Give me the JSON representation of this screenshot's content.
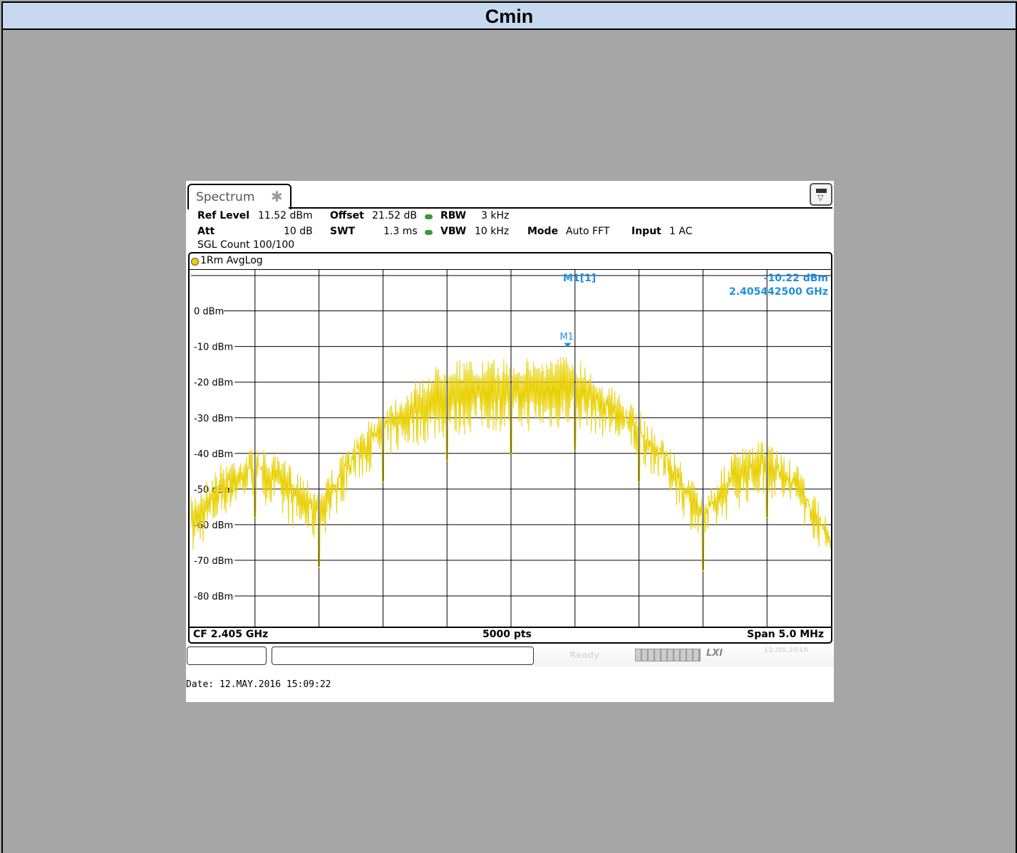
{
  "title": "Cmin",
  "analyzer": {
    "tab_label": "Spectrum",
    "settings": {
      "ref_level_label": "Ref Level",
      "ref_level_value": "11.52 dBm",
      "offset_label": "Offset",
      "offset_value": "21.52 dB",
      "rbw_label": "RBW",
      "rbw_value": "3 kHz",
      "att_label": "Att",
      "att_value": "10 dB",
      "swt_label": "SWT",
      "swt_value": "1.3 ms",
      "vbw_label": "VBW",
      "vbw_value": "10 kHz",
      "mode_label": "Mode",
      "mode_value": "Auto FFT",
      "input_label": "Input",
      "input_value": "1 AC",
      "sgl_count": "SGL Count 100/100"
    },
    "trace_label": "1Rm AvgLog",
    "marker": {
      "name": "M1[1]",
      "label": "M1",
      "level": "-10.22 dBm",
      "freq": "2.405442500 GHz"
    },
    "footer": {
      "cf": "CF 2.405 GHz",
      "pts": "5000 pts",
      "span": "Span 5.0 MHz"
    },
    "status": {
      "ready": "Ready",
      "date": "12.05.2016"
    },
    "datestamp": "Date: 12.MAY.2016  15:09:22"
  },
  "chart_data": {
    "type": "line",
    "xlabel": "",
    "ylabel": "",
    "ytick_labels": [
      "0 dBm",
      "-10 dBm",
      "-20 dBm",
      "-30 dBm",
      "-40 dBm",
      "-50 dBm",
      "-60 dBm",
      "-70 dBm",
      "-80 dBm"
    ],
    "yticks": [
      0,
      -10,
      -20,
      -30,
      -40,
      -50,
      -60,
      -70,
      -80
    ],
    "ylim": [
      -89,
      11.52
    ],
    "xlim_mhz": [
      2402.5,
      2407.5
    ],
    "x_divisions": 10,
    "series": [
      {
        "color": "#e8d000",
        "envelope_x_mhz": [
          2402.5,
          2402.75,
          2403.0,
          2403.25,
          2403.5,
          2403.75,
          2404.0,
          2404.25,
          2404.5,
          2404.75,
          2405.0,
          2405.25,
          2405.5,
          2405.75,
          2406.0,
          2406.25,
          2406.5,
          2406.75,
          2407.0,
          2407.25,
          2407.5
        ],
        "envelope_max_dbm": [
          -52,
          -42,
          -38,
          -42,
          -49,
          -37,
          -26,
          -20,
          -13,
          -14,
          -13,
          -13,
          -12,
          -20,
          -28,
          -38,
          -52,
          -39,
          -36,
          -44,
          -60
        ],
        "envelope_min_dbm": [
          -70,
          -58,
          -52,
          -60,
          -66,
          -50,
          -42,
          -38,
          -36,
          -34,
          -34,
          -34,
          -33,
          -36,
          -42,
          -52,
          -67,
          -56,
          -52,
          -58,
          -72
        ],
        "nulls_mhz": [
          2403.0,
          2403.5,
          2404.0,
          2404.5,
          2405.0,
          2405.5,
          2406.0,
          2406.5,
          2407.0
        ],
        "marker_x_mhz": 2405.4425,
        "marker_y_dbm": -10.22
      }
    ]
  }
}
